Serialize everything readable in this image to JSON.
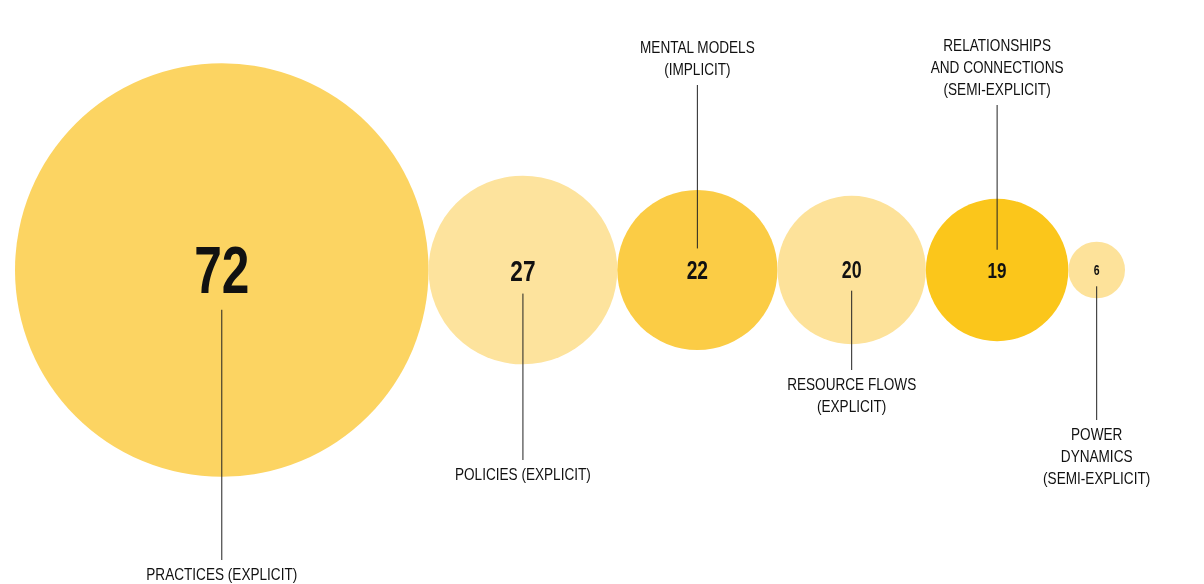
{
  "chart_data": {
    "type": "other",
    "categories": [
      "PRACTICES (EXPLICIT)",
      "POLICIES (EXPLICIT)",
      "MENTAL MODELS\n(IMPLICIT)",
      "RESOURCE FLOWS\n(EXPLICIT)",
      "RELATIONSHIPS\nAND CONNECTIONS\n(SEMI-EXPLICIT)",
      "POWER\nDYNAMICS\n(SEMI-EXPLICIT)"
    ],
    "values": [
      72,
      27,
      22,
      20,
      19,
      6
    ],
    "colors": [
      "#fcd462",
      "#fde39d",
      "#fbcc45",
      "#fde29a",
      "#fbc61b",
      "#fde29a"
    ],
    "data_labels": true
  }
}
